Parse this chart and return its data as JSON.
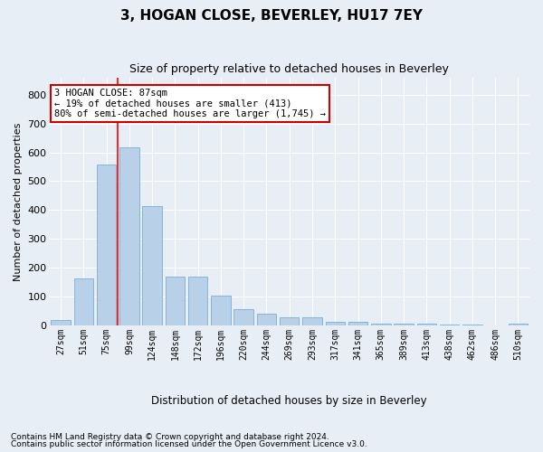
{
  "title": "3, HOGAN CLOSE, BEVERLEY, HU17 7EY",
  "subtitle": "Size of property relative to detached houses in Beverley",
  "xlabel": "Distribution of detached houses by size in Beverley",
  "ylabel": "Number of detached properties",
  "bar_color": "#b8d0e8",
  "bar_edge_color": "#7aadd4",
  "background_color": "#e8eef6",
  "grid_color": "#ffffff",
  "fig_background": "#e8eef6",
  "categories": [
    "27sqm",
    "51sqm",
    "75sqm",
    "99sqm",
    "124sqm",
    "148sqm",
    "172sqm",
    "196sqm",
    "220sqm",
    "244sqm",
    "269sqm",
    "293sqm",
    "317sqm",
    "341sqm",
    "365sqm",
    "389sqm",
    "413sqm",
    "438sqm",
    "462sqm",
    "486sqm",
    "510sqm"
  ],
  "bar_heights": [
    20,
    163,
    557,
    617,
    413,
    170,
    170,
    103,
    57,
    42,
    30,
    30,
    13,
    13,
    7,
    5,
    5,
    3,
    2,
    1,
    5
  ],
  "ylim": [
    0,
    860
  ],
  "yticks": [
    0,
    100,
    200,
    300,
    400,
    500,
    600,
    700,
    800
  ],
  "vline_x_index": 2.5,
  "annotation_text": "3 HOGAN CLOSE: 87sqm\n← 19% of detached houses are smaller (413)\n80% of semi-detached houses are larger (1,745) →",
  "annotation_box_color": "#ffffff",
  "annotation_box_edge_color": "#cc0000",
  "footer1": "Contains HM Land Registry data © Crown copyright and database right 2024.",
  "footer2": "Contains public sector information licensed under the Open Government Licence v3.0."
}
